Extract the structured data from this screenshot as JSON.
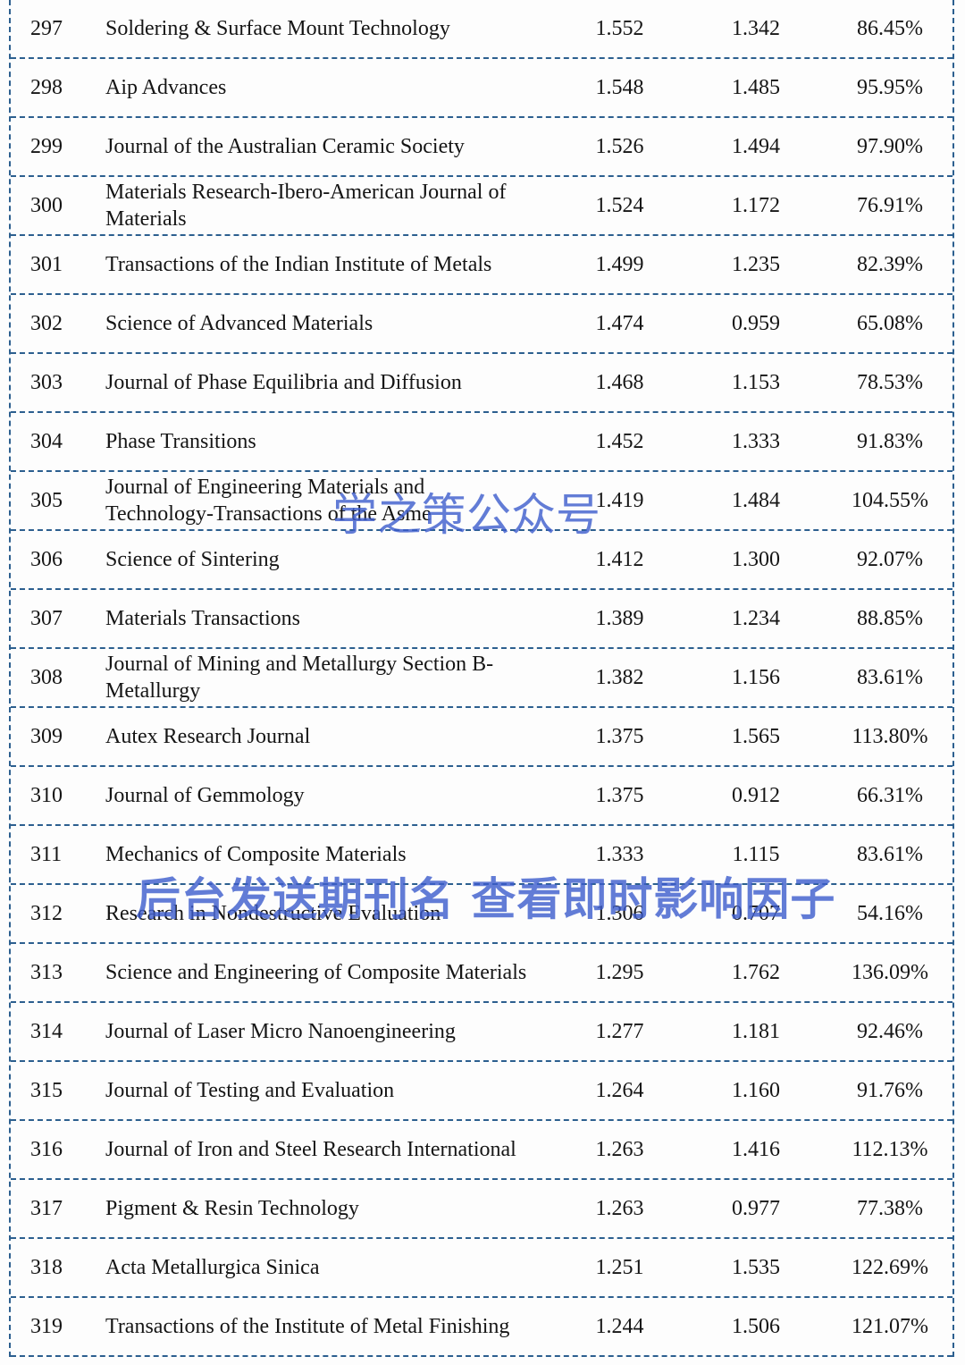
{
  "colors": {
    "border_blue": "#2c5f8f",
    "watermark_blue": "#3c5ccd",
    "text": "#151515"
  },
  "watermarks": {
    "center": "学之策公众号",
    "lower": "后台发送期刊名 查看即时影响因子"
  },
  "table": {
    "rows": [
      {
        "rank": "297",
        "name": "Soldering & Surface Mount Technology",
        "value1": "1.552",
        "value2": "1.342",
        "percent": "86.45%"
      },
      {
        "rank": "298",
        "name": "Aip Advances",
        "value1": "1.548",
        "value2": "1.485",
        "percent": "95.95%"
      },
      {
        "rank": "299",
        "name": "Journal of the Australian Ceramic Society",
        "value1": "1.526",
        "value2": "1.494",
        "percent": "97.90%"
      },
      {
        "rank": "300",
        "name": "Materials Research-Ibero-American Journal of\nMaterials",
        "value1": "1.524",
        "value2": "1.172",
        "percent": "76.91%"
      },
      {
        "rank": "301",
        "name": "Transactions of the Indian Institute of Metals",
        "value1": "1.499",
        "value2": "1.235",
        "percent": "82.39%"
      },
      {
        "rank": "302",
        "name": "Science of Advanced Materials",
        "value1": "1.474",
        "value2": "0.959",
        "percent": "65.08%"
      },
      {
        "rank": "303",
        "name": "Journal of Phase Equilibria and Diffusion",
        "value1": "1.468",
        "value2": "1.153",
        "percent": "78.53%"
      },
      {
        "rank": "304",
        "name": "Phase Transitions",
        "value1": "1.452",
        "value2": "1.333",
        "percent": "91.83%"
      },
      {
        "rank": "305",
        "name": "Journal of Engineering Materials and\nTechnology-Transactions of the Asme",
        "value1": "1.419",
        "value2": "1.484",
        "percent": "104.55%"
      },
      {
        "rank": "306",
        "name": "Science of Sintering",
        "value1": "1.412",
        "value2": "1.300",
        "percent": "92.07%"
      },
      {
        "rank": "307",
        "name": "Materials Transactions",
        "value1": "1.389",
        "value2": "1.234",
        "percent": "88.85%"
      },
      {
        "rank": "308",
        "name": "Journal of Mining and Metallurgy Section B-\nMetallurgy",
        "value1": "1.382",
        "value2": "1.156",
        "percent": "83.61%"
      },
      {
        "rank": "309",
        "name": "Autex Research Journal",
        "value1": "1.375",
        "value2": "1.565",
        "percent": "113.80%"
      },
      {
        "rank": "310",
        "name": "Journal of Gemmology",
        "value1": "1.375",
        "value2": "0.912",
        "percent": "66.31%"
      },
      {
        "rank": "311",
        "name": "Mechanics of Composite Materials",
        "value1": "1.333",
        "value2": "1.115",
        "percent": "83.61%"
      },
      {
        "rank": "312",
        "name": "Research in Nondestructive Evaluation",
        "value1": "1.306",
        "value2": "0.707",
        "percent": "54.16%"
      },
      {
        "rank": "313",
        "name": "Science and Engineering of Composite Materials",
        "value1": "1.295",
        "value2": "1.762",
        "percent": "136.09%"
      },
      {
        "rank": "314",
        "name": "Journal of Laser Micro Nanoengineering",
        "value1": "1.277",
        "value2": "1.181",
        "percent": "92.46%"
      },
      {
        "rank": "315",
        "name": "Journal of Testing and Evaluation",
        "value1": "1.264",
        "value2": "1.160",
        "percent": "91.76%"
      },
      {
        "rank": "316",
        "name": "Journal of Iron and Steel Research International",
        "value1": "1.263",
        "value2": "1.416",
        "percent": "112.13%"
      },
      {
        "rank": "317",
        "name": "Pigment & Resin Technology",
        "value1": "1.263",
        "value2": "0.977",
        "percent": "77.38%"
      },
      {
        "rank": "318",
        "name": "Acta Metallurgica Sinica",
        "value1": "1.251",
        "value2": "1.535",
        "percent": "122.69%"
      },
      {
        "rank": "319",
        "name": "Transactions of the Institute of Metal Finishing",
        "value1": "1.244",
        "value2": "1.506",
        "percent": "121.07%"
      }
    ]
  }
}
